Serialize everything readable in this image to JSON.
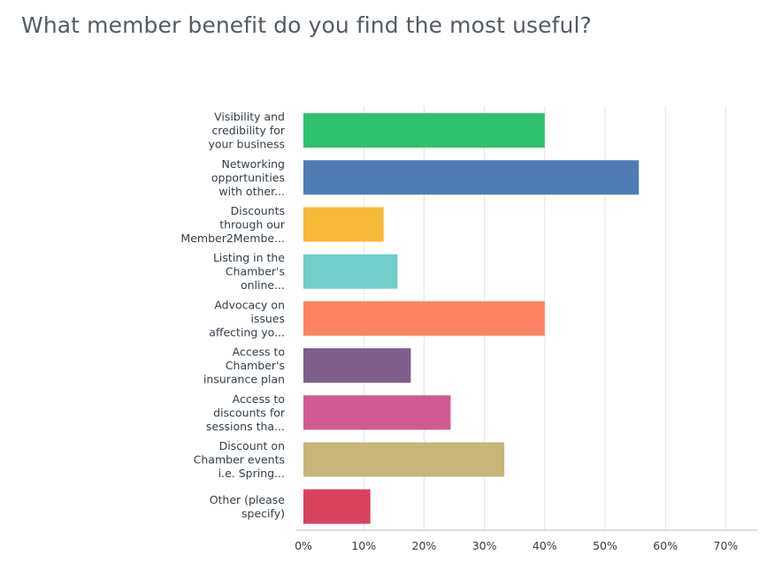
{
  "chart_data": {
    "type": "bar",
    "orientation": "horizontal",
    "title": "What member benefit do you find the most useful?",
    "categories": [
      [
        "Visibility and",
        "credibility for",
        "your business"
      ],
      [
        "Networking",
        "opportunities",
        "with other..."
      ],
      [
        "Discounts",
        "through our",
        "Member2Membe..."
      ],
      [
        "Listing in the",
        "Chamber's",
        "online..."
      ],
      [
        "Advocacy on",
        "issues",
        "affecting yo..."
      ],
      [
        "Access to",
        "Chamber's",
        "insurance plan"
      ],
      [
        "Access to",
        "discounts for",
        "sessions tha..."
      ],
      [
        "Discount on",
        "Chamber events",
        "i.e. Spring..."
      ],
      [
        "Other (please",
        "specify)"
      ]
    ],
    "values": [
      40,
      55.6,
      13.3,
      15.6,
      40,
      17.8,
      24.4,
      33.3,
      11.1
    ],
    "colors": [
      "#2dc26b",
      "#507cb6",
      "#f7b938",
      "#71cecb",
      "#fb8361",
      "#7d5e8d",
      "#d25a90",
      "#c7b679",
      "#d9435e"
    ],
    "xlim": [
      0,
      75
    ],
    "xticks": [
      0,
      10,
      20,
      30,
      40,
      50,
      60,
      70
    ],
    "xtick_labels": [
      "0%",
      "10%",
      "20%",
      "30%",
      "40%",
      "50%",
      "60%",
      "70%"
    ],
    "grid": true,
    "gridline_color": "#e3e3e3"
  }
}
